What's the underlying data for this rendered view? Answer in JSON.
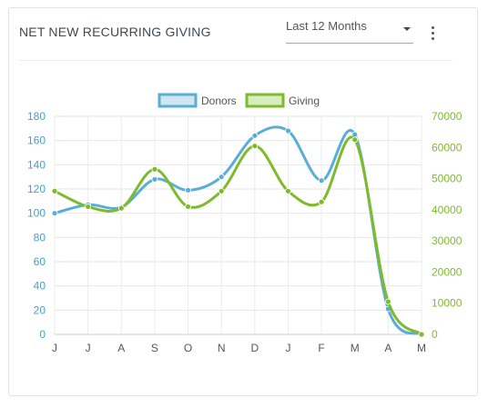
{
  "title": "NET NEW RECURRING GIVING",
  "period": "Last 12 Months",
  "colors": {
    "donors": "#5aaed6",
    "giving": "#7dbb2d",
    "leftAxis": "#4a9cc8",
    "rightAxis": "#7dbb2d"
  },
  "chart_data": {
    "type": "line",
    "categories": [
      "J",
      "J",
      "A",
      "S",
      "O",
      "N",
      "D",
      "J",
      "F",
      "M",
      "A",
      "M"
    ],
    "series": [
      {
        "name": "Donors",
        "axis": "left",
        "values": [
          100,
          107,
          105,
          128,
          119,
          130,
          164,
          168,
          127,
          165,
          21,
          0
        ]
      },
      {
        "name": "Giving",
        "axis": "right",
        "values": [
          46000,
          41000,
          40500,
          53000,
          41000,
          46000,
          60500,
          46000,
          42500,
          62500,
          10500,
          0
        ]
      }
    ],
    "y_left": {
      "ylim": [
        0,
        180
      ],
      "ticks": [
        "0",
        "20",
        "40",
        "60",
        "80",
        "100",
        "120",
        "140",
        "160",
        "180"
      ]
    },
    "y_right": {
      "ylim": [
        0,
        70000
      ],
      "ticks": [
        "0",
        "10000",
        "20000",
        "30000",
        "40000",
        "50000",
        "60000",
        "70000"
      ]
    },
    "legend": "top-center",
    "grid": true
  }
}
